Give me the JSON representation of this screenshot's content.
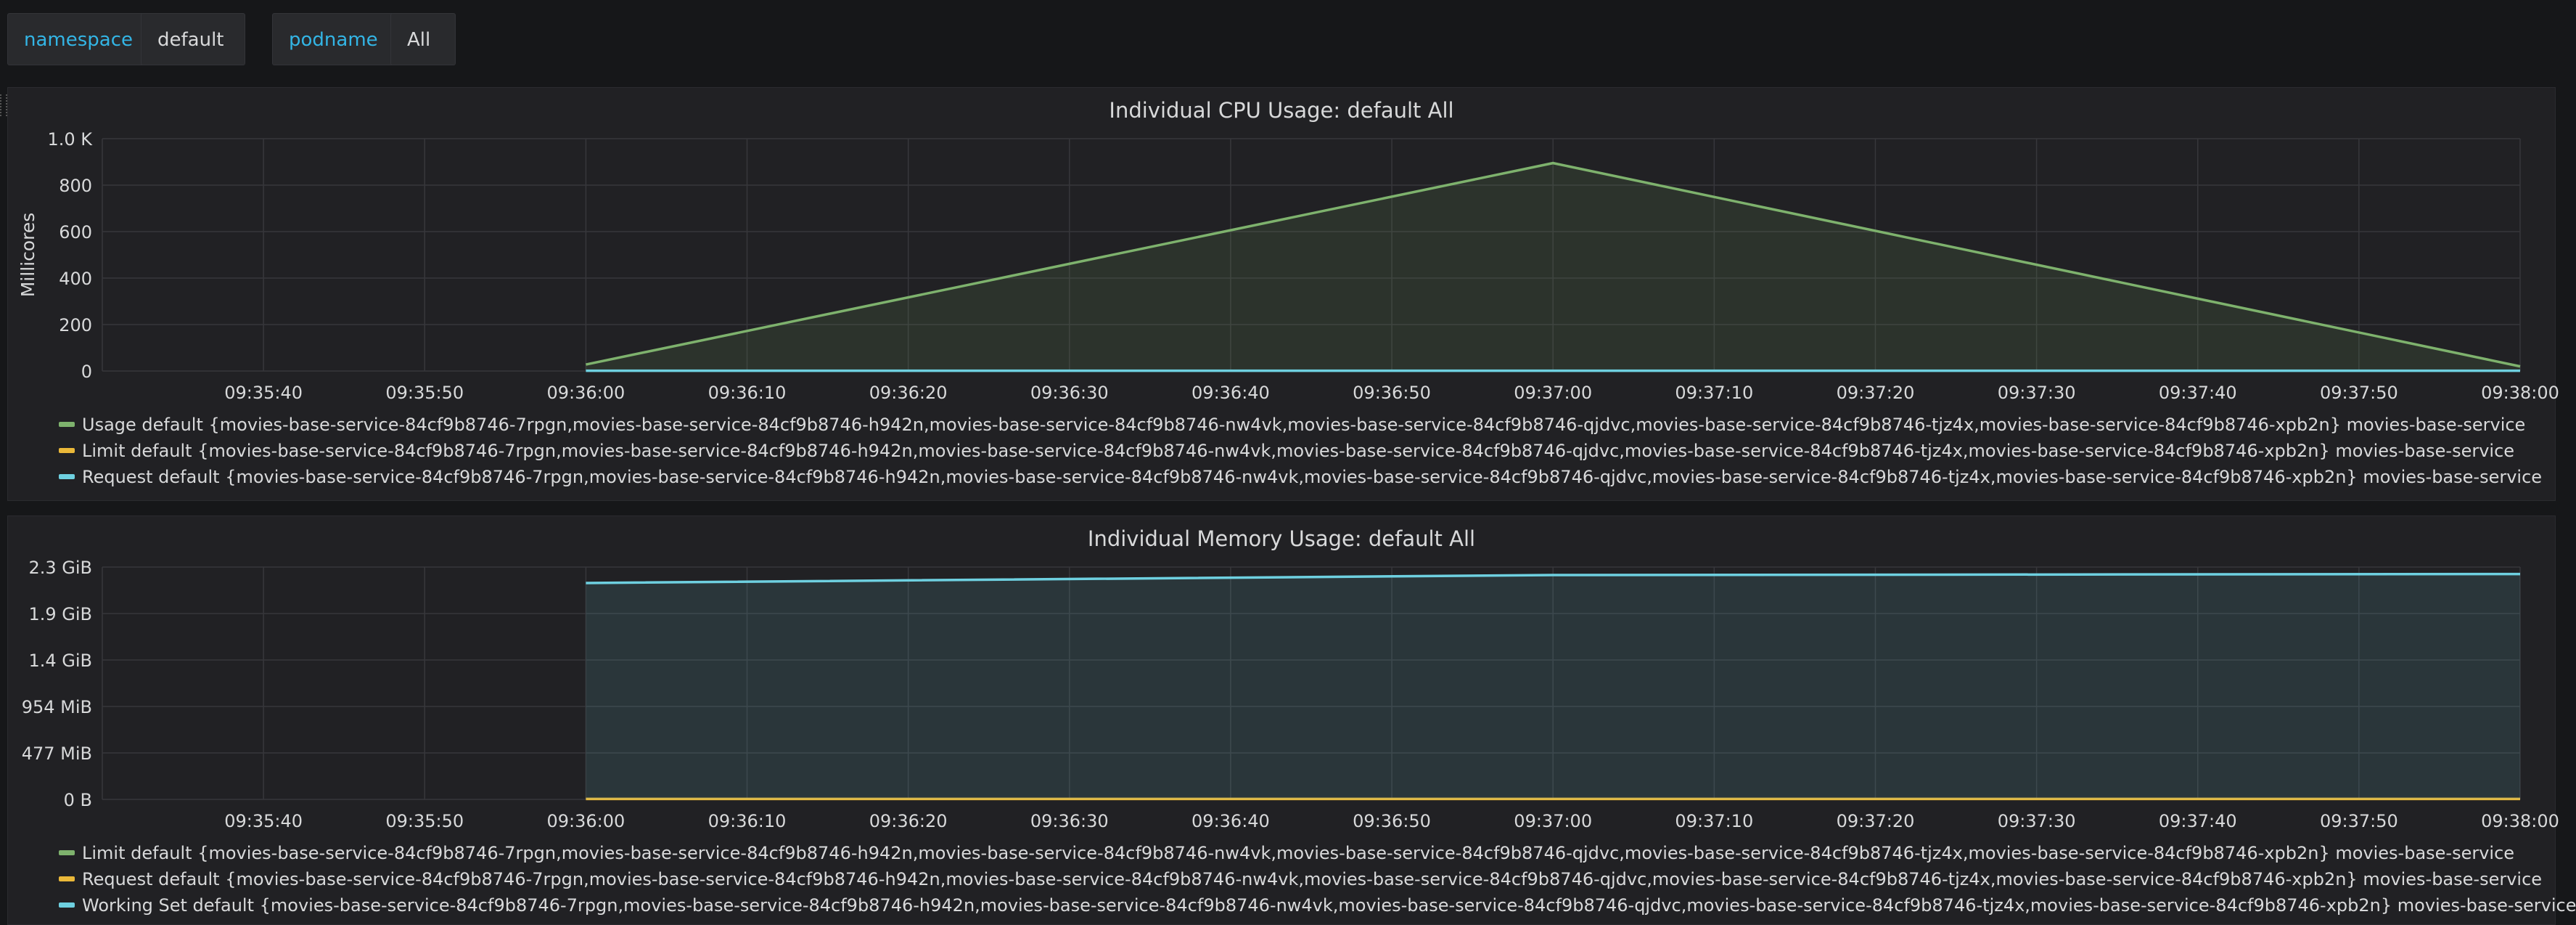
{
  "variables": [
    {
      "label": "namespace",
      "value": "default"
    },
    {
      "label": "podname",
      "value": "All"
    }
  ],
  "colors": {
    "green": "#7eb26d",
    "yellow": "#eab839",
    "cyan": "#6ed0e0"
  },
  "cpu_panel": {
    "title": "Individual CPU Usage: default All",
    "chart_data": {
      "type": "area",
      "title": "Individual CPU Usage: default All",
      "ylabel": "Millicores",
      "ylim": [
        0,
        1000
      ],
      "yticks": [
        "0",
        "200",
        "400",
        "600",
        "800",
        "1.0 K"
      ],
      "xticks": [
        "09:35:40",
        "09:35:50",
        "09:36:00",
        "09:36:10",
        "09:36:20",
        "09:36:30",
        "09:36:40",
        "09:36:50",
        "09:37:00",
        "09:37:10",
        "09:37:20",
        "09:37:30",
        "09:37:40",
        "09:37:50",
        "09:38:00"
      ],
      "xlim": [
        "09:35:30",
        "09:38:00"
      ],
      "grid": true,
      "legend_position": "bottom",
      "series": [
        {
          "name": "Usage default {movies-base-service-84cf9b8746-7rpgn,movies-base-service-84cf9b8746-h942n,movies-base-service-84cf9b8746-nw4vk,movies-base-service-84cf9b8746-qjdvc,movies-base-service-84cf9b8746-tjz4x,movies-base-service-84cf9b8746-xpb2n} movies-base-service",
          "color": "#7eb26d",
          "fill": true,
          "x": [
            "09:36:00",
            "09:37:00",
            "09:38:00"
          ],
          "values": [
            28,
            895,
            20
          ]
        },
        {
          "name": "Limit default {movies-base-service-84cf9b8746-7rpgn,movies-base-service-84cf9b8746-h942n,movies-base-service-84cf9b8746-nw4vk,movies-base-service-84cf9b8746-qjdvc,movies-base-service-84cf9b8746-tjz4x,movies-base-service-84cf9b8746-xpb2n} movies-base-service",
          "color": "#eab839",
          "fill": false,
          "x": [],
          "values": []
        },
        {
          "name": "Request default {movies-base-service-84cf9b8746-7rpgn,movies-base-service-84cf9b8746-h942n,movies-base-service-84cf9b8746-nw4vk,movies-base-service-84cf9b8746-qjdvc,movies-base-service-84cf9b8746-tjz4x,movies-base-service-84cf9b8746-xpb2n} movies-base-service",
          "color": "#6ed0e0",
          "fill": false,
          "x": [
            "09:36:00",
            "09:37:00",
            "09:38:00"
          ],
          "values": [
            1,
            1,
            1
          ]
        }
      ]
    }
  },
  "mem_panel": {
    "title": "Individual Memory Usage: default All",
    "chart_data": {
      "type": "area",
      "title": "Individual Memory Usage: default All",
      "ylabel": "",
      "ylim": [
        0,
        2.33
      ],
      "yticks": [
        "0 B",
        "477 MiB",
        "954 MiB",
        "1.4 GiB",
        "1.9 GiB",
        "2.3 GiB"
      ],
      "xticks": [
        "09:35:40",
        "09:35:50",
        "09:36:00",
        "09:36:10",
        "09:36:20",
        "09:36:30",
        "09:36:40",
        "09:36:50",
        "09:37:00",
        "09:37:10",
        "09:37:20",
        "09:37:30",
        "09:37:40",
        "09:37:50",
        "09:38:00"
      ],
      "xlim": [
        "09:35:30",
        "09:38:00"
      ],
      "grid": true,
      "legend_position": "bottom",
      "series": [
        {
          "name": "Limit default {movies-base-service-84cf9b8746-7rpgn,movies-base-service-84cf9b8746-h942n,movies-base-service-84cf9b8746-nw4vk,movies-base-service-84cf9b8746-qjdvc,movies-base-service-84cf9b8746-tjz4x,movies-base-service-84cf9b8746-xpb2n} movies-base-service",
          "color": "#7eb26d",
          "fill": false,
          "x": [],
          "values": []
        },
        {
          "name": "Request default {movies-base-service-84cf9b8746-7rpgn,movies-base-service-84cf9b8746-h942n,movies-base-service-84cf9b8746-nw4vk,movies-base-service-84cf9b8746-qjdvc,movies-base-service-84cf9b8746-tjz4x,movies-base-service-84cf9b8746-xpb2n} movies-base-service",
          "color": "#eab839",
          "fill": false,
          "x": [
            "09:36:00",
            "09:37:00",
            "09:38:00"
          ],
          "values": [
            0.005,
            0.005,
            0.005
          ]
        },
        {
          "name": "Working Set default {movies-base-service-84cf9b8746-7rpgn,movies-base-service-84cf9b8746-h942n,movies-base-service-84cf9b8746-nw4vk,movies-base-service-84cf9b8746-qjdvc,movies-base-service-84cf9b8746-tjz4x,movies-base-service-84cf9b8746-xpb2n} movies-base-service",
          "color": "#6ed0e0",
          "fill": true,
          "x": [
            "09:36:00",
            "09:37:00",
            "09:38:00"
          ],
          "values": [
            2.17,
            2.25,
            2.26
          ]
        }
      ]
    }
  }
}
